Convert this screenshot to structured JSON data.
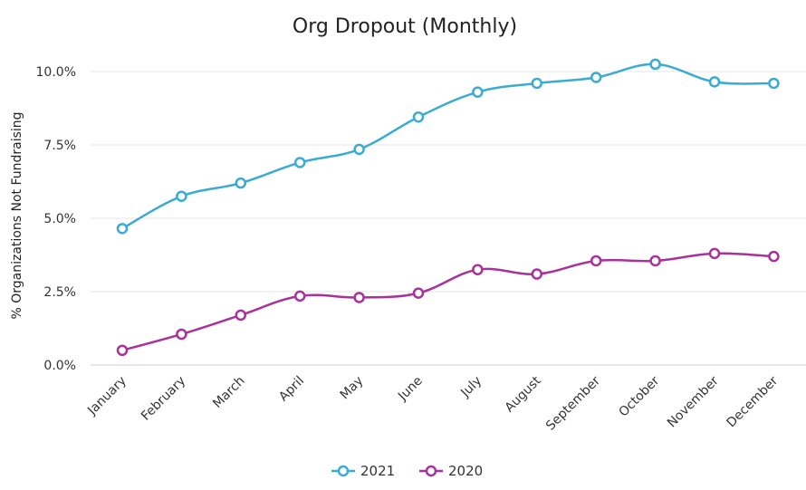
{
  "chart_data": {
    "type": "line",
    "title": "Org Dropout (Monthly)",
    "xlabel": "",
    "ylabel": "% Organizations Not Fundraising",
    "categories": [
      "January",
      "February",
      "March",
      "April",
      "May",
      "June",
      "July",
      "August",
      "September",
      "October",
      "November",
      "December"
    ],
    "ylim": [
      0,
      10
    ],
    "yticks": [
      "0.0%",
      "2.5%",
      "5.0%",
      "7.5%",
      "10.0%"
    ],
    "ytick_values": [
      0,
      2.5,
      5,
      7.5,
      10
    ],
    "grid": true,
    "legend_position": "bottom",
    "series": [
      {
        "name": "2021",
        "color": "#3aabd2",
        "values": [
          4.65,
          5.75,
          6.2,
          6.9,
          7.35,
          8.45,
          9.3,
          9.6,
          9.8,
          10.25,
          9.65,
          9.6
        ]
      },
      {
        "name": "2020",
        "color": "#a8329a",
        "values": [
          0.5,
          1.05,
          1.7,
          2.35,
          2.3,
          2.45,
          3.25,
          3.1,
          3.55,
          3.55,
          3.8,
          3.7
        ]
      }
    ]
  }
}
